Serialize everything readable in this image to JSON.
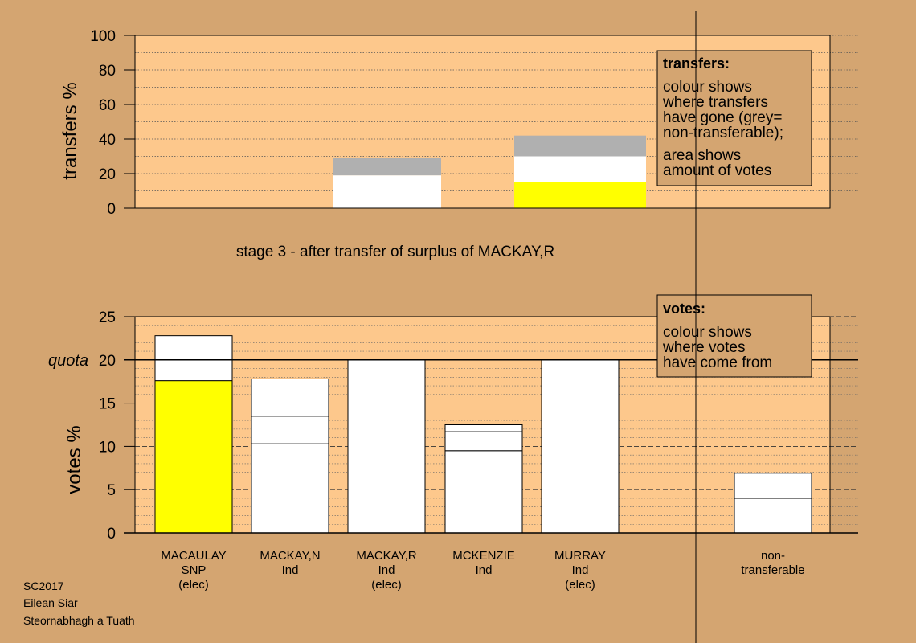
{
  "colors": {
    "background": "#d4a571",
    "plot_area": "#fdc88c",
    "snp": "#ffff00",
    "independent": "#ffffff",
    "non_transferable": "#b0b0b0",
    "legend_box": "#d4a571"
  },
  "stage_caption": "stage 3 - after transfer of surplus of MACKAY,R",
  "footer": [
    "SC2017",
    "Eilean Siar",
    "Steornabhagh a Tuath"
  ],
  "chart_data": [
    {
      "type": "bar",
      "panel": "transfers",
      "ylabel": "transfers %",
      "ylim": [
        0,
        100
      ],
      "yticks": [
        0,
        20,
        40,
        60,
        80,
        100
      ],
      "grid": true,
      "categories": [
        "MACAULAY",
        "MACKAY,N",
        "MACKAY,R",
        "MCKENZIE",
        "MURRAY",
        "non-transferable"
      ],
      "bars": [
        {
          "category": "MACKAY,N",
          "segments": [
            {
              "value": 10,
              "color": "#ffffff"
            },
            {
              "value": 9,
              "color": "#ffffff"
            },
            {
              "value": 10,
              "color": "#b0b0b0"
            }
          ]
        },
        {
          "category": "MCKENZIE",
          "segments": [
            {
              "value": 15,
              "color": "#ffff00"
            },
            {
              "value": 15,
              "color": "#ffffff"
            },
            {
              "value": 12,
              "color": "#b0b0b0"
            }
          ]
        }
      ],
      "legend": {
        "position": "top-right",
        "title": "transfers:",
        "lines1": [
          "colour shows",
          "where transfers",
          "have gone (grey=",
          "non-transferable);"
        ],
        "lines2": [
          "area shows",
          "amount of votes"
        ]
      }
    },
    {
      "type": "bar",
      "panel": "votes",
      "ylabel": "votes %",
      "ylim": [
        0,
        25
      ],
      "yticks": [
        0,
        5,
        10,
        15,
        20,
        25
      ],
      "quota": 20,
      "quota_label": "quota",
      "grid": true,
      "bars": [
        {
          "name": "MACAULAY",
          "party": "SNP",
          "status": "(elec)",
          "segments": [
            {
              "value": 17.6,
              "color": "#ffff00"
            },
            {
              "value": 5.2,
              "color": "#ffffff"
            }
          ]
        },
        {
          "name": "MACKAY,N",
          "party": "Ind",
          "status": "",
          "segments": [
            {
              "value": 10.3,
              "color": "#ffffff"
            },
            {
              "value": 3.2,
              "color": "#ffffff"
            },
            {
              "value": 4.3,
              "color": "#ffffff"
            }
          ]
        },
        {
          "name": "MACKAY,R",
          "party": "Ind",
          "status": "(elec)",
          "segments": [
            {
              "value": 20.0,
              "color": "#ffffff"
            }
          ]
        },
        {
          "name": "MCKENZIE",
          "party": "Ind",
          "status": "",
          "segments": [
            {
              "value": 9.5,
              "color": "#ffffff"
            },
            {
              "value": 2.2,
              "color": "#ffffff"
            },
            {
              "value": 0.8,
              "color": "#ffffff"
            }
          ]
        },
        {
          "name": "MURRAY",
          "party": "Ind",
          "status": "(elec)",
          "segments": [
            {
              "value": 20.0,
              "color": "#ffffff"
            }
          ]
        },
        {
          "name": "",
          "party": "",
          "status": "",
          "segments": [],
          "spacer": true
        },
        {
          "name": "non-",
          "party": "transferable",
          "status": "",
          "segments": [
            {
              "value": 4.0,
              "color": "#ffffff"
            },
            {
              "value": 2.9,
              "color": "#ffffff"
            }
          ]
        }
      ],
      "legend": {
        "position": "top-right",
        "title": "votes:",
        "lines1": [
          "colour shows",
          "where votes",
          "have come from"
        ]
      }
    }
  ]
}
